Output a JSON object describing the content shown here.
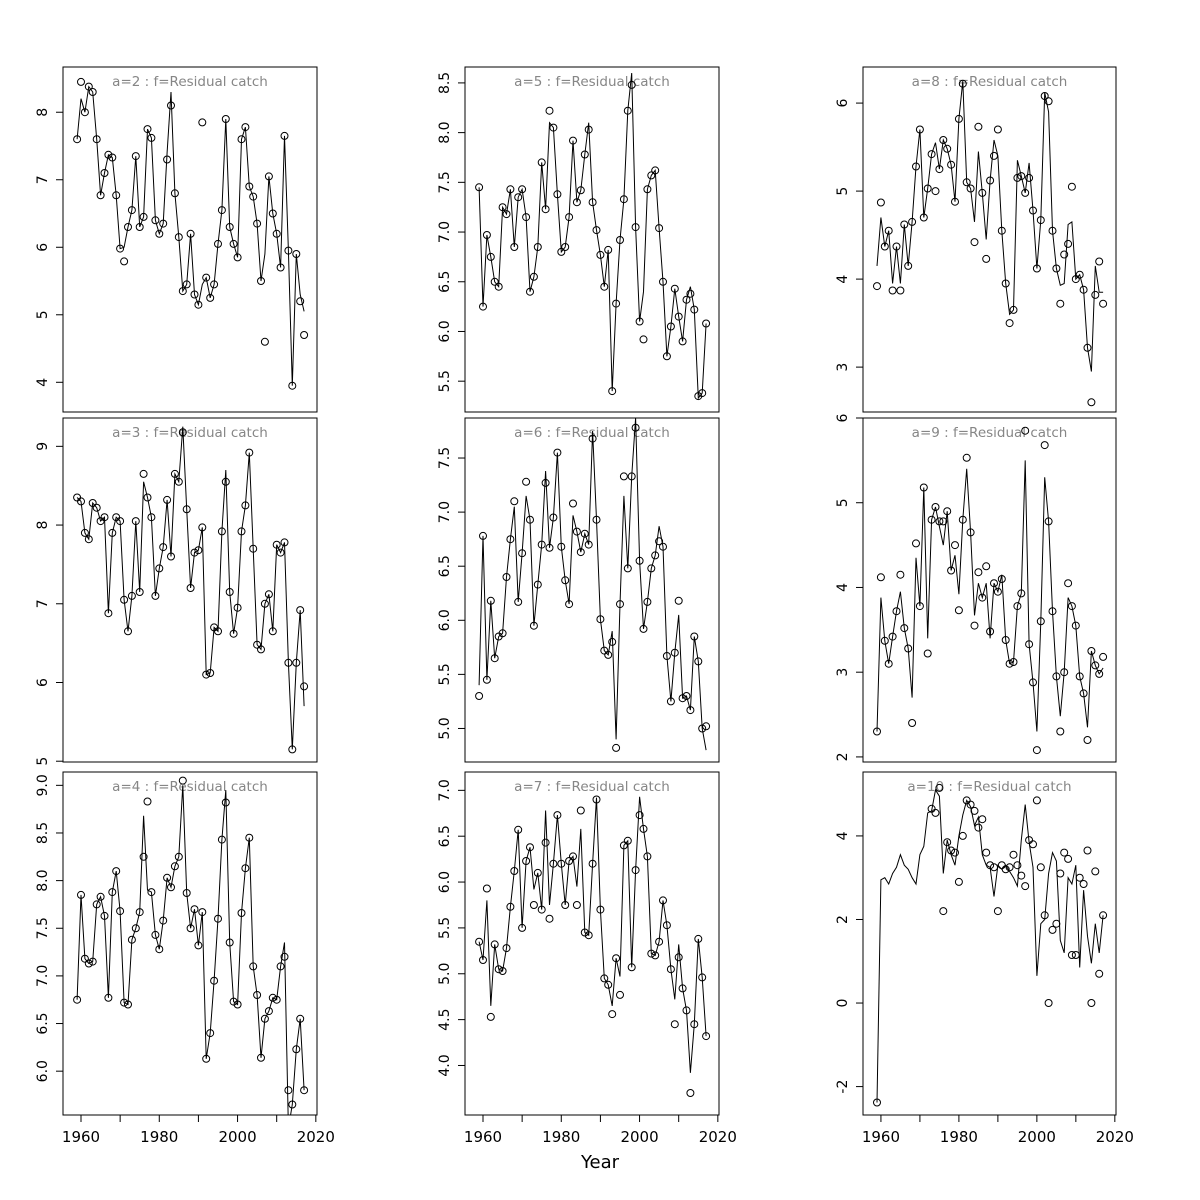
{
  "figure": {
    "xlabel": "Year"
  },
  "style": {
    "background": "#ffffff",
    "title_color": "#868686",
    "axis_color": "#000000",
    "line_color": "#000000",
    "point_color": "#000000"
  },
  "x_axis": {
    "minor_tick_years": [
      1960,
      1970,
      1980,
      1990,
      2000,
      2010,
      2020
    ],
    "labeled_years": [
      1960,
      1980,
      2000,
      2020
    ],
    "tick_labels": [
      "1960",
      "1980",
      "2000",
      "2020"
    ],
    "xlim": [
      1955.4,
      2020.3
    ]
  },
  "chart_years": [
    1959,
    1960,
    1961,
    1962,
    1963,
    1964,
    1965,
    1966,
    1967,
    1968,
    1969,
    1970,
    1971,
    1972,
    1973,
    1974,
    1975,
    1976,
    1977,
    1978,
    1979,
    1980,
    1981,
    1982,
    1983,
    1984,
    1985,
    1986,
    1987,
    1988,
    1989,
    1990,
    1991,
    1992,
    1993,
    1994,
    1995,
    1996,
    1997,
    1998,
    1999,
    2000,
    2001,
    2002,
    2003,
    2004,
    2005,
    2006,
    2007,
    2008,
    2009,
    2010,
    2011,
    2012,
    2013,
    2014,
    2015,
    2016,
    2017
  ],
  "chart_data": [
    {
      "type": "line+scatter",
      "a": 2,
      "f": "Residual catch",
      "title": "a=2  :  f=Residual catch",
      "ylim": [
        3.56,
        8.67
      ],
      "ytick_values": [
        4,
        5,
        6,
        7,
        8
      ],
      "ytick_labels": [
        "4",
        "5",
        "6",
        "7",
        "8"
      ],
      "points": [
        7.6,
        8.45,
        8.0,
        8.38,
        8.3,
        7.6,
        6.77,
        7.1,
        7.37,
        7.33,
        6.77,
        5.98,
        5.79,
        6.3,
        6.55,
        7.35,
        6.3,
        6.45,
        7.75,
        7.62,
        6.4,
        6.2,
        6.35,
        7.3,
        8.1,
        6.8,
        6.15,
        5.35,
        5.45,
        6.2,
        5.3,
        5.15,
        7.85,
        5.55,
        5.25,
        5.45,
        6.05,
        6.55,
        7.9,
        6.3,
        6.05,
        5.85,
        7.6,
        7.78,
        6.9,
        6.75,
        6.35,
        5.5,
        4.6,
        7.05,
        6.5,
        6.2,
        5.7,
        7.65,
        5.95,
        3.95,
        5.9,
        5.2,
        4.7
      ],
      "line": [
        7.6,
        8.2,
        8.0,
        8.38,
        8.3,
        7.6,
        6.77,
        7.1,
        7.37,
        7.33,
        6.77,
        5.98,
        6.0,
        6.3,
        6.55,
        7.35,
        6.3,
        6.45,
        7.75,
        7.62,
        6.4,
        6.2,
        6.35,
        7.4,
        8.3,
        6.8,
        6.15,
        5.35,
        5.45,
        6.2,
        5.3,
        5.15,
        5.45,
        5.55,
        5.25,
        5.45,
        6.05,
        6.55,
        7.9,
        6.3,
        6.05,
        5.85,
        7.6,
        7.78,
        6.9,
        6.75,
        6.35,
        5.5,
        5.9,
        7.05,
        6.5,
        6.2,
        5.7,
        7.65,
        5.95,
        3.95,
        5.9,
        5.3,
        5.05
      ]
    },
    {
      "type": "line+scatter",
      "a": 3,
      "f": "Residual catch",
      "title": "a=3  :  f=Residual catch",
      "ylim": [
        4.99,
        9.36
      ],
      "ytick_values": [
        5,
        6,
        7,
        8,
        9
      ],
      "ytick_labels": [
        "5",
        "6",
        "7",
        "8",
        "9"
      ],
      "points": [
        8.35,
        8.3,
        7.9,
        7.82,
        8.28,
        8.22,
        8.05,
        8.1,
        6.88,
        7.9,
        8.1,
        8.05,
        7.05,
        6.65,
        7.1,
        8.05,
        7.15,
        8.65,
        8.35,
        8.1,
        7.1,
        7.45,
        7.72,
        8.32,
        7.6,
        8.65,
        8.55,
        9.18,
        8.2,
        7.2,
        7.65,
        7.68,
        7.97,
        6.1,
        6.12,
        6.7,
        6.65,
        7.92,
        8.55,
        7.15,
        6.62,
        6.95,
        7.92,
        8.25,
        8.92,
        7.7,
        6.48,
        6.42,
        7.0,
        7.12,
        6.65,
        7.75,
        7.65,
        7.78,
        6.25,
        5.15,
        6.25,
        6.92,
        5.95
      ],
      "line": [
        8.35,
        8.3,
        7.9,
        7.82,
        8.28,
        8.22,
        8.05,
        8.1,
        6.88,
        7.9,
        8.1,
        8.05,
        7.05,
        6.65,
        7.1,
        8.05,
        7.15,
        8.55,
        8.35,
        8.1,
        7.1,
        7.45,
        7.72,
        8.32,
        7.6,
        8.65,
        8.55,
        9.25,
        8.2,
        7.2,
        7.65,
        7.68,
        7.97,
        6.1,
        6.12,
        6.7,
        6.65,
        7.92,
        8.7,
        7.15,
        6.62,
        6.95,
        7.92,
        8.25,
        8.92,
        7.7,
        6.48,
        6.42,
        7.0,
        7.12,
        6.65,
        7.75,
        7.65,
        7.78,
        6.25,
        5.15,
        6.25,
        6.92,
        5.7
      ]
    },
    {
      "type": "line+scatter",
      "a": 4,
      "f": "Residual catch",
      "title": "a=4  :  f=Residual catch",
      "ylim": [
        5.54,
        9.14
      ],
      "ytick_values": [
        6.0,
        6.5,
        7.0,
        7.5,
        8.0,
        8.5,
        9.0
      ],
      "ytick_labels": [
        "6.0",
        "6.5",
        "7.0",
        "7.5",
        "8.0",
        "8.5",
        "9.0"
      ],
      "points": [
        6.75,
        7.85,
        7.18,
        7.13,
        7.15,
        7.75,
        7.83,
        7.63,
        6.77,
        7.88,
        8.1,
        7.68,
        6.72,
        6.7,
        7.38,
        7.5,
        7.67,
        8.25,
        8.83,
        7.88,
        7.43,
        7.28,
        7.58,
        8.03,
        7.93,
        8.15,
        8.25,
        9.05,
        7.87,
        7.5,
        7.7,
        7.32,
        7.67,
        6.13,
        6.4,
        6.95,
        7.6,
        8.43,
        8.82,
        7.35,
        6.73,
        6.7,
        7.66,
        8.13,
        8.45,
        7.1,
        6.8,
        6.14,
        6.55,
        6.63,
        6.77,
        6.75,
        7.1,
        7.2,
        5.8,
        5.65,
        6.23,
        6.55,
        5.8
      ],
      "line": [
        6.75,
        7.85,
        7.18,
        7.13,
        7.15,
        7.75,
        7.83,
        7.63,
        6.77,
        7.88,
        8.1,
        7.68,
        6.72,
        6.7,
        7.38,
        7.5,
        7.67,
        8.68,
        7.9,
        7.88,
        7.43,
        7.28,
        7.58,
        8.03,
        7.93,
        8.15,
        8.25,
        9.0,
        7.87,
        7.5,
        7.7,
        7.32,
        7.67,
        6.13,
        6.4,
        6.95,
        7.6,
        8.43,
        8.95,
        7.35,
        6.73,
        6.7,
        7.66,
        8.13,
        8.45,
        7.1,
        6.8,
        6.14,
        6.55,
        6.63,
        6.77,
        6.75,
        7.1,
        7.35,
        5.4,
        5.65,
        6.23,
        6.55,
        5.8
      ]
    },
    {
      "type": "line+scatter",
      "a": 5,
      "f": "Residual catch",
      "title": "a=5  :  f=Residual catch",
      "ylim": [
        5.19,
        8.66
      ],
      "ytick_values": [
        5.5,
        6.0,
        6.5,
        7.0,
        7.5,
        8.0,
        8.5
      ],
      "ytick_labels": [
        "5.5",
        "6.0",
        "6.5",
        "7.0",
        "7.5",
        "8.0",
        "8.5"
      ],
      "points": [
        7.45,
        6.25,
        6.97,
        6.75,
        6.5,
        6.45,
        7.25,
        7.18,
        7.43,
        6.85,
        7.35,
        7.43,
        7.15,
        6.4,
        6.55,
        6.85,
        7.7,
        7.23,
        8.22,
        8.05,
        7.38,
        6.8,
        6.85,
        7.15,
        7.92,
        7.3,
        7.42,
        7.78,
        8.03,
        7.3,
        7.02,
        6.77,
        6.45,
        6.82,
        5.4,
        6.28,
        6.92,
        7.33,
        8.22,
        8.48,
        7.05,
        6.1,
        5.92,
        7.43,
        7.57,
        7.62,
        7.04,
        6.5,
        5.75,
        6.05,
        6.43,
        6.15,
        5.9,
        6.32,
        6.38,
        6.22,
        5.35,
        5.38,
        6.08
      ],
      "line": [
        7.45,
        6.25,
        6.97,
        6.75,
        6.5,
        6.45,
        7.25,
        7.18,
        7.43,
        6.85,
        7.35,
        7.43,
        7.15,
        6.4,
        6.55,
        6.85,
        7.7,
        7.23,
        8.1,
        8.05,
        7.38,
        6.8,
        6.85,
        7.15,
        7.92,
        7.3,
        7.42,
        7.78,
        8.1,
        7.3,
        7.02,
        6.77,
        6.45,
        6.82,
        5.4,
        6.28,
        6.92,
        7.33,
        8.22,
        8.6,
        7.05,
        6.1,
        6.4,
        7.43,
        7.57,
        7.62,
        7.04,
        6.5,
        5.75,
        6.05,
        6.43,
        6.15,
        5.9,
        6.32,
        6.45,
        6.22,
        5.33,
        5.38,
        6.08
      ]
    },
    {
      "type": "line+scatter",
      "a": 6,
      "f": "Residual catch",
      "title": "a=6  :  f=Residual catch",
      "ylim": [
        4.69,
        7.87
      ],
      "ytick_values": [
        5.0,
        5.5,
        6.0,
        6.5,
        7.0,
        7.5
      ],
      "ytick_labels": [
        "5.0",
        "5.5",
        "6.0",
        "6.5",
        "7.0",
        "7.5"
      ],
      "points": [
        5.3,
        6.78,
        5.45,
        6.18,
        5.65,
        5.85,
        5.88,
        6.4,
        6.75,
        7.1,
        6.17,
        6.62,
        7.28,
        6.93,
        5.95,
        6.33,
        6.7,
        7.27,
        6.67,
        6.95,
        7.55,
        6.68,
        6.37,
        6.15,
        7.08,
        6.82,
        6.63,
        6.8,
        6.7,
        7.68,
        6.93,
        6.01,
        5.72,
        5.68,
        5.8,
        4.82,
        6.15,
        7.33,
        6.48,
        7.33,
        7.78,
        6.55,
        5.92,
        6.17,
        6.48,
        6.6,
        6.73,
        6.68,
        5.67,
        5.25,
        5.7,
        6.18,
        5.28,
        5.3,
        5.17,
        5.85,
        5.62,
        5.0,
        5.02
      ],
      "line": [
        5.4,
        6.78,
        5.45,
        6.18,
        5.65,
        5.85,
        5.88,
        6.4,
        6.75,
        7.05,
        6.17,
        6.62,
        7.15,
        6.93,
        5.95,
        6.33,
        6.7,
        7.38,
        6.67,
        6.95,
        7.55,
        6.68,
        6.37,
        6.15,
        6.97,
        6.82,
        6.63,
        6.8,
        6.7,
        7.75,
        6.93,
        6.01,
        5.72,
        5.68,
        5.9,
        4.9,
        6.15,
        7.15,
        6.48,
        7.33,
        7.87,
        6.55,
        5.92,
        6.17,
        6.48,
        6.6,
        6.87,
        6.68,
        5.67,
        5.25,
        5.7,
        6.05,
        5.28,
        5.3,
        5.17,
        5.85,
        5.62,
        5.0,
        4.8
      ]
    },
    {
      "type": "line+scatter",
      "a": 7,
      "f": "Residual catch",
      "title": "a=7  :  f=Residual catch",
      "ylim": [
        3.46,
        7.2
      ],
      "ytick_values": [
        4.0,
        4.5,
        5.0,
        5.5,
        6.0,
        6.5,
        7.0
      ],
      "ytick_labels": [
        "4.0",
        "4.5",
        "5.0",
        "5.5",
        "6.0",
        "6.5",
        "7.0"
      ],
      "points": [
        5.35,
        5.15,
        5.93,
        4.53,
        5.32,
        5.05,
        5.03,
        5.28,
        5.73,
        6.12,
        6.57,
        5.5,
        6.23,
        6.38,
        5.75,
        6.1,
        5.7,
        6.43,
        5.6,
        6.2,
        6.73,
        6.2,
        5.75,
        6.23,
        6.28,
        5.75,
        6.78,
        5.45,
        5.42,
        6.2,
        6.9,
        5.7,
        4.95,
        4.88,
        4.56,
        5.17,
        4.77,
        6.4,
        6.45,
        5.07,
        6.13,
        6.73,
        6.58,
        6.28,
        5.22,
        5.2,
        5.35,
        5.8,
        5.53,
        5.05,
        4.45,
        5.18,
        4.84,
        4.6,
        3.7,
        4.45,
        5.38,
        4.96,
        4.32
      ],
      "line": [
        5.35,
        5.15,
        5.8,
        4.65,
        5.32,
        5.05,
        5.03,
        5.28,
        5.73,
        6.12,
        6.57,
        5.5,
        6.23,
        6.38,
        5.92,
        6.1,
        5.7,
        6.78,
        5.75,
        6.2,
        6.73,
        6.2,
        5.75,
        6.23,
        6.28,
        5.95,
        6.58,
        5.45,
        5.42,
        6.2,
        6.92,
        5.7,
        4.95,
        4.88,
        4.65,
        5.17,
        4.97,
        6.4,
        6.45,
        5.07,
        6.13,
        6.93,
        6.58,
        6.28,
        5.22,
        5.2,
        5.35,
        5.8,
        5.53,
        5.05,
        4.72,
        5.32,
        4.84,
        4.6,
        3.92,
        4.45,
        5.38,
        4.96,
        4.32
      ]
    },
    {
      "type": "line+scatter",
      "a": 8,
      "f": "Residual catch",
      "title": "a=8  :  f=Residual catch",
      "ylim": [
        2.49,
        6.41
      ],
      "ytick_values": [
        3,
        4,
        5,
        6
      ],
      "ytick_labels": [
        "3",
        "4",
        "5",
        "6"
      ],
      "points": [
        3.92,
        4.87,
        4.37,
        4.55,
        3.87,
        4.37,
        3.87,
        4.62,
        4.15,
        4.65,
        5.28,
        5.7,
        4.7,
        5.03,
        5.42,
        5.0,
        5.25,
        5.58,
        5.48,
        5.3,
        4.88,
        5.82,
        6.22,
        5.1,
        5.03,
        4.42,
        5.73,
        4.98,
        4.23,
        5.12,
        5.4,
        5.7,
        4.55,
        3.95,
        3.5,
        3.65,
        5.15,
        5.17,
        4.98,
        5.15,
        4.78,
        4.12,
        4.67,
        6.08,
        6.02,
        4.55,
        4.12,
        3.72,
        4.28,
        4.4,
        5.05,
        4.0,
        4.05,
        3.88,
        3.22,
        2.6,
        3.82,
        4.2,
        3.72
      ],
      "line": [
        4.15,
        4.7,
        4.37,
        4.55,
        3.95,
        4.37,
        3.95,
        4.62,
        4.15,
        4.65,
        5.28,
        5.7,
        4.7,
        5.03,
        5.42,
        5.55,
        5.25,
        5.58,
        5.48,
        5.3,
        4.88,
        5.82,
        6.25,
        5.1,
        5.03,
        4.65,
        5.45,
        4.98,
        4.45,
        5.12,
        5.58,
        5.4,
        4.55,
        3.95,
        3.6,
        3.65,
        5.35,
        5.17,
        4.98,
        5.32,
        4.78,
        4.12,
        4.67,
        6.12,
        5.9,
        4.55,
        4.12,
        3.93,
        3.95,
        4.62,
        4.65,
        4.0,
        4.05,
        3.88,
        3.22,
        2.95,
        4.15,
        3.85,
        3.85
      ]
    },
    {
      "type": "line+scatter",
      "a": 9,
      "f": "Residual catch",
      "title": "a=9  :  f=Residual catch",
      "ylim": [
        1.94,
        6.0
      ],
      "ytick_values": [
        2,
        3,
        4,
        5,
        6
      ],
      "ytick_labels": [
        "2",
        "3",
        "4",
        "5",
        "6"
      ],
      "points": [
        2.3,
        4.12,
        3.37,
        3.1,
        3.42,
        3.72,
        4.15,
        3.52,
        3.28,
        2.4,
        4.52,
        3.78,
        5.18,
        3.22,
        4.8,
        4.95,
        4.78,
        4.78,
        4.9,
        4.2,
        4.5,
        3.73,
        4.8,
        5.53,
        4.65,
        3.55,
        4.18,
        3.88,
        4.25,
        3.48,
        4.05,
        3.95,
        4.1,
        3.38,
        3.1,
        3.12,
        3.78,
        3.93,
        5.85,
        3.33,
        2.88,
        2.08,
        3.6,
        5.68,
        4.78,
        3.72,
        2.95,
        2.3,
        3.0,
        4.05,
        3.78,
        3.55,
        2.95,
        2.75,
        2.2,
        3.25,
        3.08,
        2.98,
        3.18
      ],
      "line": [
        2.3,
        3.88,
        3.37,
        3.1,
        3.42,
        3.72,
        3.95,
        3.52,
        3.28,
        2.7,
        4.35,
        3.78,
        5.18,
        3.4,
        4.8,
        4.95,
        4.72,
        4.5,
        4.9,
        4.2,
        4.38,
        3.92,
        4.8,
        5.4,
        4.65,
        3.67,
        4.05,
        3.88,
        4.05,
        3.4,
        4.05,
        3.95,
        4.15,
        3.38,
        3.1,
        3.12,
        3.78,
        3.93,
        5.5,
        3.33,
        2.88,
        2.3,
        3.6,
        5.3,
        4.78,
        3.72,
        2.95,
        2.48,
        3.0,
        3.88,
        3.78,
        3.55,
        2.95,
        2.75,
        2.35,
        3.25,
        3.08,
        2.98,
        3.05
      ]
    },
    {
      "type": "line+scatter",
      "a": 10,
      "f": "Residual catch",
      "title": "a=10  :  f=Residual catch",
      "ylim": [
        -2.68,
        5.53
      ],
      "ytick_values": [
        -2,
        0,
        2,
        4
      ],
      "ytick_labels": [
        "-2",
        "0",
        "2",
        "4"
      ],
      "points": [
        -2.38,
        null,
        null,
        null,
        null,
        null,
        null,
        null,
        null,
        null,
        null,
        null,
        null,
        null,
        4.65,
        4.55,
        5.15,
        2.2,
        3.85,
        3.65,
        3.6,
        2.9,
        4.0,
        4.85,
        4.75,
        4.6,
        4.2,
        4.4,
        3.6,
        3.3,
        3.25,
        2.2,
        3.3,
        3.2,
        3.25,
        3.55,
        3.3,
        3.05,
        2.8,
        3.9,
        3.8,
        4.85,
        3.25,
        2.1,
        0.0,
        1.75,
        1.9,
        3.1,
        3.6,
        3.45,
        1.15,
        1.15,
        3.0,
        2.85,
        3.65,
        0.0,
        3.15,
        0.7,
        2.1
      ],
      "line": [
        -2.38,
        2.95,
        3.0,
        2.85,
        3.1,
        3.25,
        3.55,
        3.3,
        3.2,
        3.0,
        2.85,
        3.55,
        3.75,
        4.55,
        4.6,
        5.1,
        4.95,
        3.1,
        3.9,
        3.55,
        3.3,
        4.0,
        4.5,
        4.85,
        4.7,
        4.25,
        4.45,
        3.55,
        3.3,
        3.25,
        2.55,
        3.3,
        3.2,
        3.3,
        3.15,
        3.0,
        2.8,
        3.9,
        4.75,
        3.85,
        3.25,
        0.65,
        1.9,
        2.0,
        3.1,
        3.6,
        3.4,
        1.5,
        1.2,
        3.0,
        2.85,
        3.3,
        0.85,
        2.7,
        1.6,
        0.95,
        1.9,
        1.2,
        2.1
      ]
    }
  ]
}
